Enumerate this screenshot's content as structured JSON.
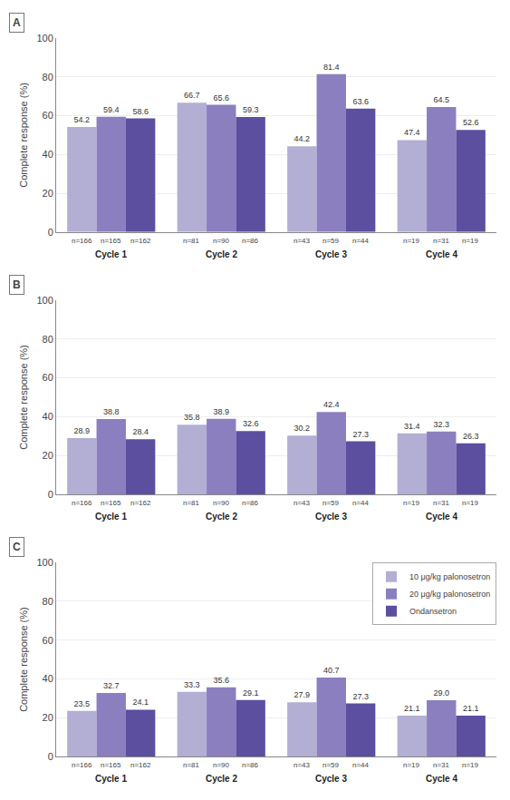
{
  "chart_data": [
    {
      "type": "bar",
      "title": "A",
      "ylabel": "Complete response (%)",
      "categories": [
        "Cycle 1",
        "Cycle 2",
        "Cycle 3",
        "Cycle 4"
      ],
      "series": [
        {
          "name": "10 μg/kg palonosetron",
          "color": "#b3aed4",
          "values": [
            54.2,
            66.7,
            44.2,
            47.4
          ],
          "value_labels": [
            "54.2",
            "66.7",
            "44.2",
            "47.4"
          ],
          "n_labels": [
            "n=166",
            "n=81",
            "n=43",
            "n=19"
          ]
        },
        {
          "name": "20 μg/kg palonosetron",
          "color": "#8b7fbf",
          "values": [
            59.4,
            65.6,
            81.4,
            64.5
          ],
          "value_labels": [
            "59.4",
            "65.6",
            "81.4",
            "64.5"
          ],
          "n_labels": [
            "n=165",
            "n=90",
            "n=59",
            "n=31"
          ]
        },
        {
          "name": "Ondansetron",
          "color": "#5c4fa0",
          "values": [
            58.6,
            59.3,
            63.6,
            52.6
          ],
          "value_labels": [
            "58.6",
            "59.3",
            "63.6",
            "52.6"
          ],
          "n_labels": [
            "n=162",
            "n=86",
            "n=44",
            "n=19"
          ]
        }
      ],
      "ylim": [
        0,
        100
      ],
      "yticks": [
        0,
        20,
        40,
        60,
        80,
        100
      ],
      "grid": true,
      "data_labels": true,
      "legend": false
    },
    {
      "type": "bar",
      "title": "B",
      "ylabel": "Complete response (%)",
      "categories": [
        "Cycle 1",
        "Cycle 2",
        "Cycle 3",
        "Cycle 4"
      ],
      "series": [
        {
          "name": "10 μg/kg palonosetron",
          "color": "#b3aed4",
          "values": [
            28.9,
            35.8,
            30.2,
            31.4
          ],
          "value_labels": [
            "28.9",
            "35.8",
            "30.2",
            "31.4"
          ],
          "n_labels": [
            "n=166",
            "n=81",
            "n=43",
            "n=19"
          ]
        },
        {
          "name": "20 μg/kg palonosetron",
          "color": "#8b7fbf",
          "values": [
            38.8,
            38.9,
            42.4,
            32.3
          ],
          "value_labels": [
            "38.8",
            "38.9",
            "42.4",
            "32.3"
          ],
          "n_labels": [
            "n=165",
            "n=90",
            "n=59",
            "n=31"
          ]
        },
        {
          "name": "Ondansetron",
          "color": "#5c4fa0",
          "values": [
            28.4,
            32.6,
            27.3,
            26.3
          ],
          "value_labels": [
            "28.4",
            "32.6",
            "27.3",
            "26.3"
          ],
          "n_labels": [
            "n=162",
            "n=86",
            "n=44",
            "n=19"
          ]
        }
      ],
      "ylim": [
        0,
        100
      ],
      "yticks": [
        0,
        20,
        40,
        60,
        80,
        100
      ],
      "grid": true,
      "data_labels": true,
      "legend": false
    },
    {
      "type": "bar",
      "title": "C",
      "ylabel": "Complete response (%)",
      "categories": [
        "Cycle 1",
        "Cycle 2",
        "Cycle 3",
        "Cycle 4"
      ],
      "series": [
        {
          "name": "10 μg/kg palonosetron",
          "color": "#b3aed4",
          "values": [
            23.5,
            33.3,
            27.9,
            21.1
          ],
          "value_labels": [
            "23.5",
            "33.3",
            "27.9",
            "21.1"
          ],
          "n_labels": [
            "n=166",
            "n=81",
            "n=43",
            "n=19"
          ]
        },
        {
          "name": "20 μg/kg palonosetron",
          "color": "#8b7fbf",
          "values": [
            32.7,
            35.6,
            40.7,
            29.0
          ],
          "value_labels": [
            "32.7",
            "35.6",
            "40.7",
            "29.0"
          ],
          "n_labels": [
            "n=165",
            "n=90",
            "n=59",
            "n=31"
          ]
        },
        {
          "name": "Ondansetron",
          "color": "#5c4fa0",
          "values": [
            24.1,
            29.1,
            27.3,
            21.1
          ],
          "value_labels": [
            "24.1",
            "29.1",
            "27.3",
            "21.1"
          ],
          "n_labels": [
            "n=162",
            "n=86",
            "n=44",
            "n=19"
          ]
        }
      ],
      "ylim": [
        0,
        100
      ],
      "yticks": [
        0,
        20,
        40,
        60,
        80,
        100
      ],
      "grid": true,
      "data_labels": true,
      "legend": "upper right"
    }
  ]
}
